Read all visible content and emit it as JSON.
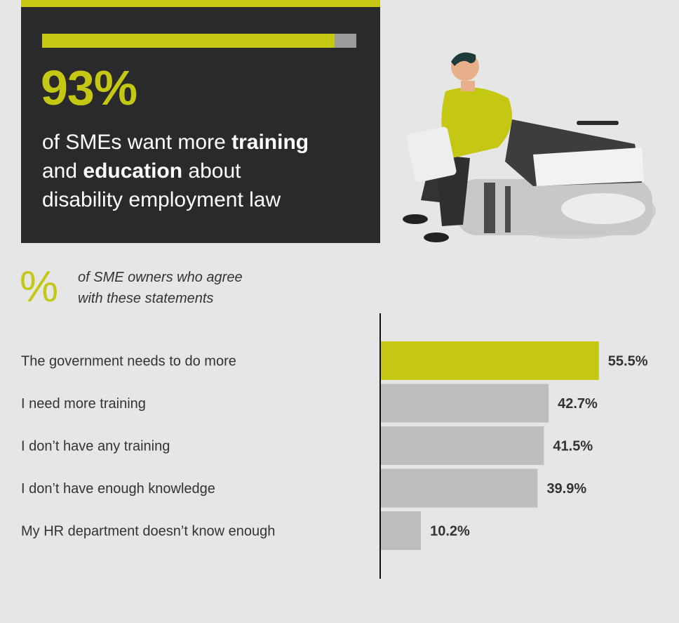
{
  "stat": {
    "big_number": "93%",
    "progress_fraction": 0.93,
    "line1_pre": "of SMEs want more ",
    "line1_bold": "training",
    "line2_bold": "education",
    "line2_pre": "and ",
    "line2_post": " about",
    "line3": "disability employment law"
  },
  "legend": {
    "symbol": "%",
    "line1": "of SME owners who agree",
    "line2": "with these statements"
  },
  "colors": {
    "accent": "#c5c813",
    "bar": "#bebebe",
    "dark": "#2a2a2d"
  },
  "chart_data": {
    "type": "bar",
    "orientation": "horizontal",
    "categories": [
      "The government needs to do more",
      "I need more training",
      "I don’t have any training",
      "I don’t have enough knowledge",
      "My HR department doesn’t know enough"
    ],
    "values": [
      55.5,
      42.7,
      41.5,
      39.9,
      10.2
    ],
    "value_labels": [
      "55.5%",
      "42.7%",
      "41.5%",
      "39.9%",
      "10.2%"
    ],
    "highlight_index": 0,
    "xlim": [
      0,
      100
    ]
  }
}
